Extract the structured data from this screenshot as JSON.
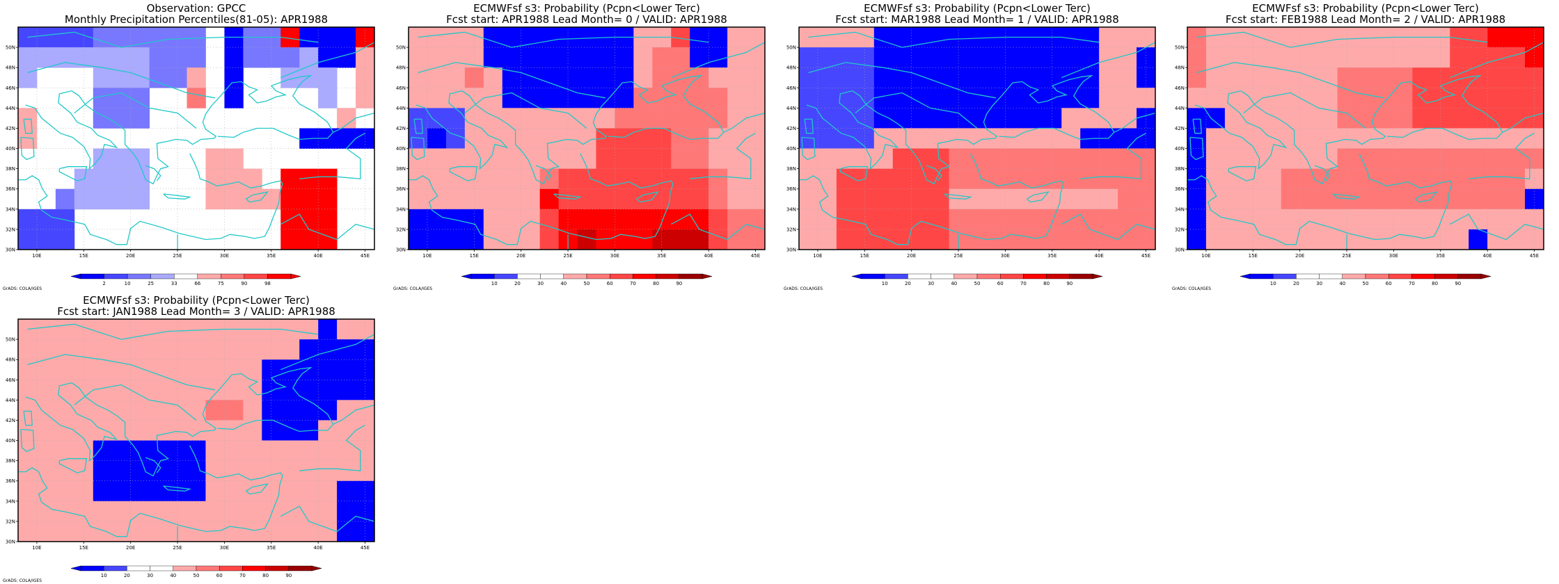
{
  "grads_credit": "GrADS: COLA/IGES",
  "grid": {
    "rows_top_to_bottom_lat": [
      "51N",
      "49N",
      "47N",
      "45N",
      "43N",
      "41N",
      "39N",
      "37N",
      "35N",
      "33N",
      "31N"
    ],
    "cols_left_to_right_lon": [
      "9E",
      "11E",
      "13E",
      "15E",
      "17E",
      "19E",
      "21E",
      "23E",
      "25E",
      "27E",
      "29E",
      "31E",
      "33E",
      "35E",
      "37E",
      "39E",
      "41E",
      "43E",
      "45E"
    ],
    "lat_ticks": [
      "50N",
      "48N",
      "46N",
      "44N",
      "42N",
      "40N",
      "38N",
      "36N",
      "34N",
      "32N",
      "30N"
    ],
    "lon_ticks": [
      "10E",
      "15E",
      "20E",
      "25E",
      "30E",
      "35E",
      "40E",
      "45E"
    ]
  },
  "colors": {
    "coast": "#20c8c8",
    "gridline": "#aaaaaa",
    "obs_classes": [
      "#0000ff",
      "#4646ff",
      "#7878ff",
      "#aaaaff",
      "#ffffff",
      "#ffaaaa",
      "#ff7878",
      "#ff4646",
      "#ff0000"
    ],
    "prob_classes": [
      "#0000ff",
      "#4646ff",
      "#ffffff",
      "#ffffff",
      "#ffaaaa",
      "#ff7878",
      "#ff4646",
      "#ff0000",
      "#cc0000",
      "#990000"
    ]
  },
  "panels": [
    {
      "title_line1": "Observation: GPCC",
      "title_line2": "Monthly Precipitation Percentiles(81-05): APR1988",
      "colorbar_labels": [
        "2",
        "10",
        "25",
        "33",
        "66",
        "75",
        "90",
        "98"
      ],
      "palette": "obs_classes",
      "cells": [
        "1111222222402280008",
        "3333333222402223005",
        "3444333225404433345",
        "4444222446404444345",
        "5444222444444444454",
        "5444444444444440000",
        "4444333444554444444",
        "4443333444555488844",
        "4423333444555588844",
        "1114444444444488844",
        "1114444444444488844"
      ]
    },
    {
      "title_line1": "ECMWFsf s3: Probability (Pcpn<Lower Terc)",
      "title_line2": "Fcst start: APR1988   Lead Month= 0 / VALID: APR1988",
      "colorbar_labels": [
        "10",
        "20",
        "30",
        "40",
        "50",
        "60",
        "70",
        "80",
        "90"
      ],
      "palette": "prob_classes",
      "cells": [
        "4444000000004460044",
        "4444000000004550044",
        "4445400000004555444",
        "4444400000005555544",
        "1114444444455555544",
        "1014444444666655444",
        "4444444444666655444",
        "4444444566666666544",
        "4444444766666666544",
        "0000444677777777655",
        "0000444678777888655"
      ]
    },
    {
      "title_line1": "ECMWFsf s3: Probability (Pcpn<Lower Terc)",
      "title_line2": "Fcst start: MAR1988   Lead Month= 1 / VALID: APR1988",
      "colorbar_labels": [
        "10",
        "20",
        "30",
        "40",
        "50",
        "60",
        "70",
        "80",
        "90"
      ],
      "palette": "prob_classes",
      "cells": [
        "4444000000000000444",
        "1111000000000000440",
        "1111000000000000440",
        "1111000000000000444",
        "1111000000000044440",
        "1111444444444440000",
        "4444466655555555555",
        "4466666655555555555",
        "4466666644444444455",
        "4466666655555555555",
        "4466666655555555555"
      ]
    },
    {
      "title_line1": "ECMWFsf s3: Probability (Pcpn<Lower Terc)",
      "title_line2": "Fcst start: FEB1988   Lead Month= 2 / VALID: APR1988",
      "colorbar_labels": [
        "10",
        "20",
        "30",
        "40",
        "50",
        "60",
        "70",
        "80",
        "90"
      ],
      "palette": "prob_classes",
      "cells": [
        "5444444444444466777",
        "5444444444444466667",
        "5444444455556666666",
        "4444444455556666666",
        "0044444455556666666",
        "0444444444444444444",
        "0444444455555555555",
        "0444455555555555554",
        "0444455555555555550",
        "0444444444444444444",
        "0444444444444440444"
      ]
    },
    {
      "title_line1": "ECMWFsf s3: Probability (Pcpn<Lower Terc)",
      "title_line2": "Fcst start: JAN1988   Lead Month= 3 / VALID: APR1988",
      "colorbar_labels": [
        "10",
        "20",
        "30",
        "40",
        "50",
        "60",
        "70",
        "80",
        "90"
      ],
      "palette": "prob_classes",
      "cells": [
        "4444444444444444044",
        "4444444444444440000",
        "4444444444444000000",
        "4444444444444000000",
        "4444444444554000044",
        "4444444444444000444",
        "4444000000444444444",
        "4444000000444444444",
        "4444000000444444400",
        "4444444444444444400",
        "4444444444444444400"
      ]
    }
  ]
}
